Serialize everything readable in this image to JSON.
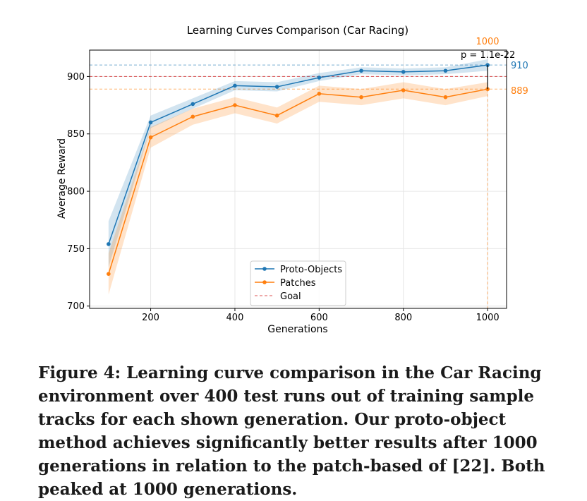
{
  "chart_data": {
    "type": "line",
    "title": "Learning Curves Comparison (Car Racing)",
    "xlabel": "Generations",
    "ylabel": "Average Reward",
    "xlim": [
      55,
      1045
    ],
    "ylim": [
      698,
      923
    ],
    "xticks": [
      200,
      400,
      600,
      800,
      1000
    ],
    "yticks": [
      700,
      750,
      800,
      850,
      900
    ],
    "grid": true,
    "legend_position": "lower center",
    "x": [
      100,
      200,
      300,
      400,
      500,
      600,
      700,
      800,
      900,
      1000
    ],
    "series": [
      {
        "name": "Proto-Objects",
        "color": "#1f77b4",
        "values": [
          754,
          860,
          876,
          892,
          891,
          899,
          905,
          904,
          905,
          910
        ],
        "lower": [
          734,
          855,
          872,
          888,
          887,
          896,
          902,
          901,
          902,
          905
        ],
        "upper": [
          774,
          866,
          881,
          896,
          895,
          903,
          908,
          907,
          908,
          915
        ]
      },
      {
        "name": "Patches",
        "color": "#ff7f0e",
        "values": [
          728,
          847,
          865,
          875,
          866,
          885,
          882,
          888,
          882,
          889
        ],
        "lower": [
          710,
          838,
          858,
          868,
          859,
          878,
          875,
          881,
          875,
          883
        ],
        "upper": [
          746,
          856,
          872,
          882,
          873,
          892,
          889,
          895,
          889,
          895
        ]
      }
    ],
    "goal": {
      "name": "Goal",
      "value": 900,
      "color": "#d62728"
    },
    "annotations": {
      "proto_final_label": "910",
      "patches_final_label": "889",
      "peak_generation_label": "1000",
      "p_value_label": "p = 1.1e-22"
    }
  },
  "caption": "Figure 4: Learning curve comparison in the Car Racing environment over 400 test runs out of training sample tracks for each shown generation. Our proto-object method achieves significantly better results after 1000 generations in relation to the patch-based of [22]. Both peaked at 1000 generations."
}
